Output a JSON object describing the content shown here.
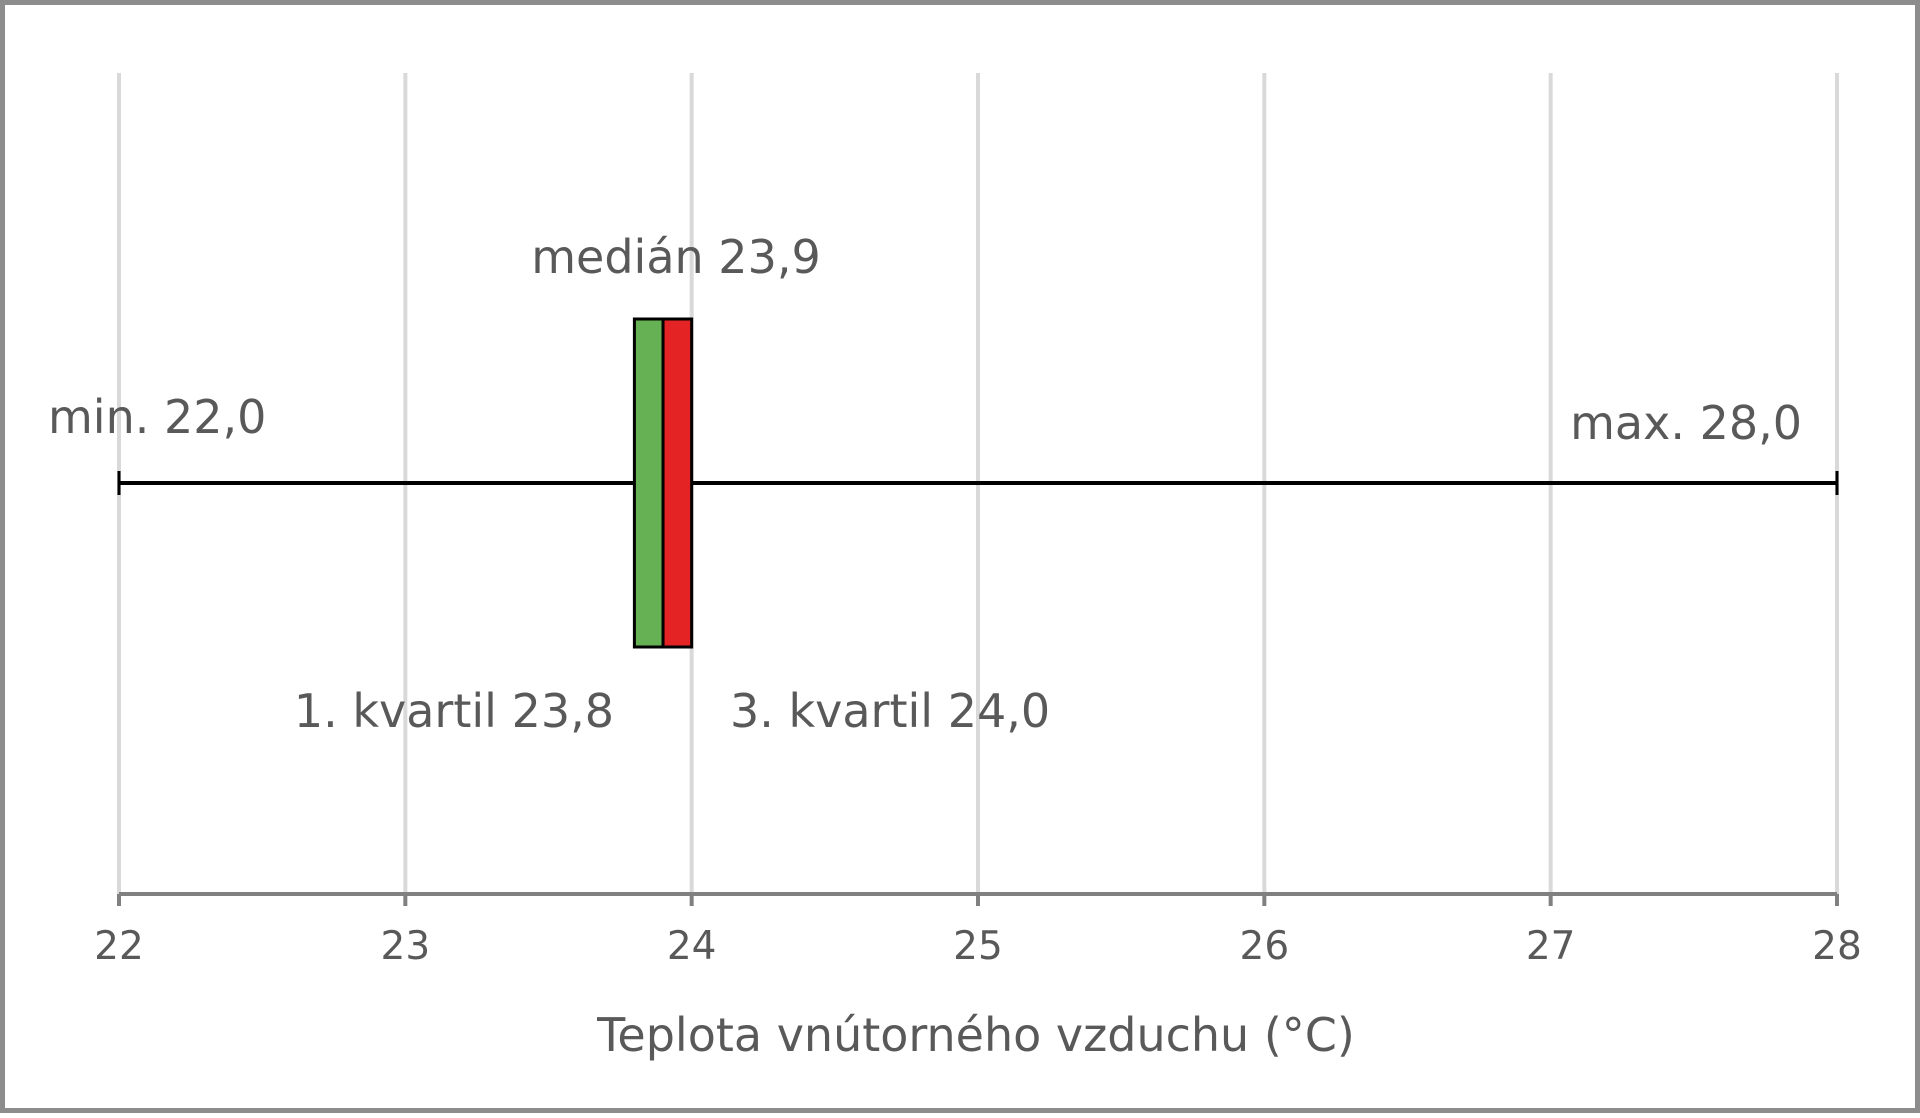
{
  "chart_data": {
    "type": "boxplot",
    "orientation": "horizontal",
    "xlabel": "Teplota vnútorného vzduchu (°C)",
    "xlim": [
      22,
      28
    ],
    "xticks": [
      22,
      23,
      24,
      25,
      26,
      27,
      28
    ],
    "grid": true,
    "box": {
      "min": 22.0,
      "q1": 23.8,
      "median": 23.9,
      "q3": 24.0,
      "max": 28.0
    },
    "annotations": {
      "min": "min. 22,0",
      "max": "max. 28,0",
      "median": "medián 23,9",
      "q1": "1. kvartil 23,8",
      "q3": "3. kvartil 24,0"
    },
    "colors": {
      "lower_box": "#66b153",
      "upper_box": "#e42424",
      "grid": "#d9d9d9",
      "axis": "#808080",
      "whisker": "#000000",
      "text": "#595959"
    }
  }
}
